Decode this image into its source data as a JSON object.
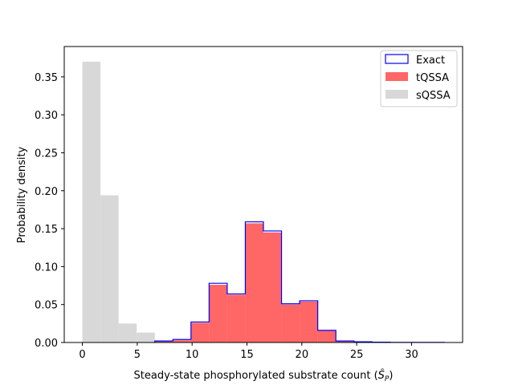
{
  "chart_data": {
    "type": "bar",
    "title": "",
    "xlabel": "Steady-state phosphorylated substrate count (",
    "xlabel_math": "Ŝ",
    "xlabel_sub": "P",
    "xlabel_tail": ")",
    "ylabel": "Probability density",
    "xlim": [
      -1.65,
      34.65
    ],
    "ylim": [
      0,
      0.39
    ],
    "xticks": [
      0,
      5,
      10,
      15,
      20,
      25,
      30
    ],
    "xtick_labels": [
      "0",
      "5",
      "10",
      "15",
      "20",
      "25",
      "30"
    ],
    "yticks": [
      0,
      0.05,
      0.1,
      0.15,
      0.2,
      0.25,
      0.3,
      0.35
    ],
    "ytick_labels": [
      "0.00",
      "0.05",
      "0.10",
      "0.15",
      "0.20",
      "0.25",
      "0.30",
      "0.35"
    ],
    "legend_position": "top-right",
    "legend": [
      "Exact",
      "tQSSA",
      "sQSSA"
    ],
    "series": [
      {
        "name": "sQSSA",
        "style": "fill",
        "color": "#d8d8d8",
        "bins": [
          [
            0,
            1.65,
            0.37
          ],
          [
            1.65,
            3.3,
            0.194
          ],
          [
            3.3,
            4.95,
            0.025
          ],
          [
            4.95,
            6.6,
            0.013
          ]
        ]
      },
      {
        "name": "tQSSA",
        "style": "fill",
        "color": "#ff6666",
        "bins": [
          [
            6.6,
            8.25,
            0.0015
          ],
          [
            8.25,
            9.9,
            0.003
          ],
          [
            9.9,
            11.55,
            0.026
          ],
          [
            11.55,
            13.2,
            0.076
          ],
          [
            13.2,
            14.85,
            0.063
          ],
          [
            14.85,
            16.5,
            0.157
          ],
          [
            16.5,
            18.15,
            0.145
          ],
          [
            18.15,
            19.8,
            0.05
          ],
          [
            19.8,
            21.45,
            0.054
          ],
          [
            21.45,
            23.1,
            0.016
          ],
          [
            23.1,
            24.75,
            0.002
          ],
          [
            24.75,
            26.4,
            0.0008
          ]
        ]
      },
      {
        "name": "Exact",
        "style": "step",
        "color": "#0000ff",
        "bins": [
          [
            6.6,
            8.25,
            0.002
          ],
          [
            8.25,
            9.9,
            0.004
          ],
          [
            9.9,
            11.55,
            0.027
          ],
          [
            11.55,
            13.2,
            0.078
          ],
          [
            13.2,
            14.85,
            0.064
          ],
          [
            14.85,
            16.5,
            0.159
          ],
          [
            16.5,
            18.15,
            0.147
          ],
          [
            18.15,
            19.8,
            0.051
          ],
          [
            19.8,
            21.45,
            0.055
          ],
          [
            21.45,
            23.1,
            0.016
          ],
          [
            23.1,
            24.75,
            0.002
          ],
          [
            24.75,
            26.4,
            0.001
          ],
          [
            26.4,
            28.05,
            0.0004
          ],
          [
            28.05,
            29.7,
            0.0002
          ],
          [
            29.7,
            31.35,
            0.0002
          ],
          [
            31.35,
            33,
            0.0001
          ]
        ]
      }
    ]
  }
}
